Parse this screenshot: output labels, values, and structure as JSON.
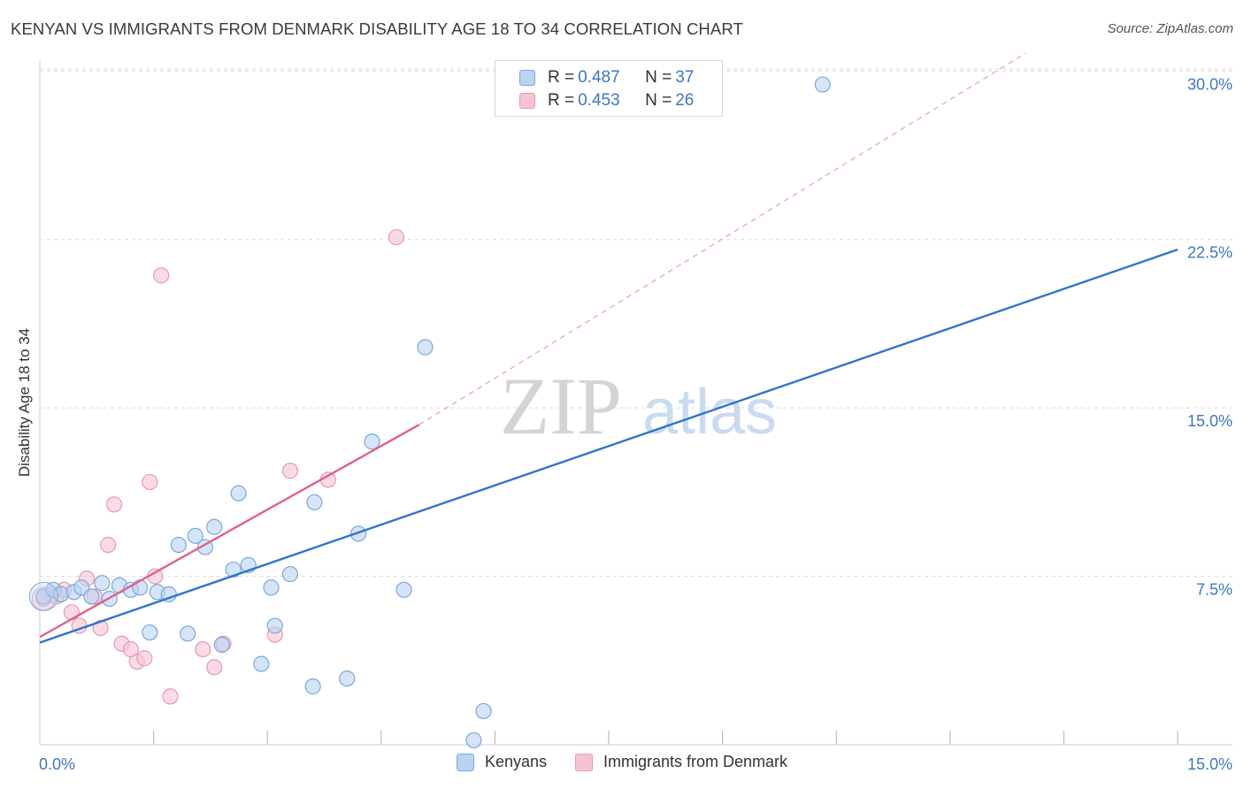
{
  "title": "KENYAN VS IMMIGRANTS FROM DENMARK DISABILITY AGE 18 TO 34 CORRELATION CHART",
  "source": "Source: ZipAtlas.com",
  "watermark": {
    "zip": "ZIP",
    "atlas": "atlas"
  },
  "legend": {
    "rows": [
      {
        "r_label": "R = ",
        "r_value": "0.487",
        "n_label": "N = ",
        "n_value": "37"
      },
      {
        "r_label": "R = ",
        "r_value": "0.453",
        "n_label": "N = ",
        "n_value": "26"
      }
    ]
  },
  "bottom_legend": [
    "Kenyans",
    "Immigrants from Denmark"
  ],
  "colors": {
    "blue_fill": "#b9d3f3",
    "blue_stroke": "#7aa8dc",
    "blue_line": "#2f73d0",
    "pink_fill": "#f7c3d3",
    "pink_stroke": "#e898b2",
    "pink_line": "#e2608a",
    "tick_text": "#3b78c4",
    "grid": "#d9d9d9"
  },
  "chart_data": {
    "type": "scatter",
    "title": "KENYAN VS IMMIGRANTS FROM DENMARK DISABILITY AGE 18 TO 34 CORRELATION CHART",
    "xlabel": "",
    "ylabel": "Disability Age 18 to 34",
    "xlim": [
      0,
      15
    ],
    "ylim": [
      0,
      30.8
    ],
    "x_tick_labels": [
      {
        "value": 0,
        "label": "0.0%"
      },
      {
        "value": 15,
        "label": "15.0%"
      }
    ],
    "y_tick_labels": [
      {
        "value": 7.5,
        "label": "7.5%"
      },
      {
        "value": 15.0,
        "label": "15.0%"
      },
      {
        "value": 22.5,
        "label": "22.5%"
      },
      {
        "value": 30.0,
        "label": "30.0%"
      }
    ],
    "x_minor_ticks": [
      1.5,
      3.0,
      4.5,
      6.0,
      7.5,
      9.0,
      10.5,
      12.0,
      13.5,
      15.0
    ],
    "series": [
      {
        "name": "Kenyans",
        "r": 0.487,
        "n": 37,
        "color": "blue",
        "points": [
          {
            "x": 0.05,
            "y": 6.6
          },
          {
            "x": 0.18,
            "y": 6.9
          },
          {
            "x": 0.28,
            "y": 6.7
          },
          {
            "x": 0.45,
            "y": 6.8
          },
          {
            "x": 0.55,
            "y": 7.0
          },
          {
            "x": 0.68,
            "y": 6.6
          },
          {
            "x": 0.82,
            "y": 7.2
          },
          {
            "x": 0.92,
            "y": 6.5
          },
          {
            "x": 1.05,
            "y": 7.1
          },
          {
            "x": 1.2,
            "y": 6.9
          },
          {
            "x": 1.32,
            "y": 7.0
          },
          {
            "x": 1.45,
            "y": 5.0
          },
          {
            "x": 1.55,
            "y": 6.8
          },
          {
            "x": 1.7,
            "y": 6.7
          },
          {
            "x": 1.83,
            "y": 8.9
          },
          {
            "x": 1.95,
            "y": 4.95
          },
          {
            "x": 2.05,
            "y": 9.3
          },
          {
            "x": 2.18,
            "y": 8.8
          },
          {
            "x": 2.3,
            "y": 9.7
          },
          {
            "x": 2.4,
            "y": 4.45
          },
          {
            "x": 2.55,
            "y": 7.8
          },
          {
            "x": 2.62,
            "y": 11.2
          },
          {
            "x": 2.75,
            "y": 8.0
          },
          {
            "x": 2.92,
            "y": 3.6
          },
          {
            "x": 3.05,
            "y": 7.0
          },
          {
            "x": 3.1,
            "y": 5.3
          },
          {
            "x": 3.3,
            "y": 7.6
          },
          {
            "x": 3.6,
            "y": 2.6
          },
          {
            "x": 3.62,
            "y": 10.8
          },
          {
            "x": 4.05,
            "y": 2.95
          },
          {
            "x": 4.2,
            "y": 9.4
          },
          {
            "x": 4.38,
            "y": 13.5
          },
          {
            "x": 4.8,
            "y": 6.9
          },
          {
            "x": 5.08,
            "y": 17.7
          },
          {
            "x": 5.72,
            "y": 0.2
          },
          {
            "x": 5.85,
            "y": 1.5
          },
          {
            "x": 10.32,
            "y": 29.4
          }
        ],
        "trend": {
          "x1": 0,
          "y1": 4.55,
          "x2": 15,
          "y2": 22.05
        }
      },
      {
        "name": "Immigrants from Denmark",
        "r": 0.453,
        "n": 26,
        "color": "pink",
        "points": [
          {
            "x": 0.05,
            "y": 6.5
          },
          {
            "x": 0.15,
            "y": 6.7
          },
          {
            "x": 0.22,
            "y": 6.6
          },
          {
            "x": 0.32,
            "y": 6.9
          },
          {
            "x": 0.42,
            "y": 5.9
          },
          {
            "x": 0.52,
            "y": 5.3
          },
          {
            "x": 0.62,
            "y": 7.4
          },
          {
            "x": 0.72,
            "y": 6.6
          },
          {
            "x": 0.8,
            "y": 5.2
          },
          {
            "x": 0.9,
            "y": 8.9
          },
          {
            "x": 0.98,
            "y": 10.7
          },
          {
            "x": 1.08,
            "y": 4.5
          },
          {
            "x": 1.2,
            "y": 4.25
          },
          {
            "x": 1.28,
            "y": 3.7
          },
          {
            "x": 1.38,
            "y": 3.85
          },
          {
            "x": 1.45,
            "y": 11.7
          },
          {
            "x": 1.52,
            "y": 7.5
          },
          {
            "x": 1.6,
            "y": 20.9
          },
          {
            "x": 1.72,
            "y": 2.15
          },
          {
            "x": 2.15,
            "y": 4.25
          },
          {
            "x": 2.3,
            "y": 3.45
          },
          {
            "x": 2.42,
            "y": 4.5
          },
          {
            "x": 3.1,
            "y": 4.9
          },
          {
            "x": 3.3,
            "y": 12.2
          },
          {
            "x": 3.8,
            "y": 11.8
          },
          {
            "x": 4.7,
            "y": 22.6
          }
        ],
        "trend": {
          "x1": 0,
          "y1": 4.8,
          "x2": 5.0,
          "y2": 14.25
        },
        "trend_extension": {
          "x1": 5.0,
          "y1": 14.25,
          "x2": 13.0,
          "y2": 30.8
        }
      }
    ]
  }
}
